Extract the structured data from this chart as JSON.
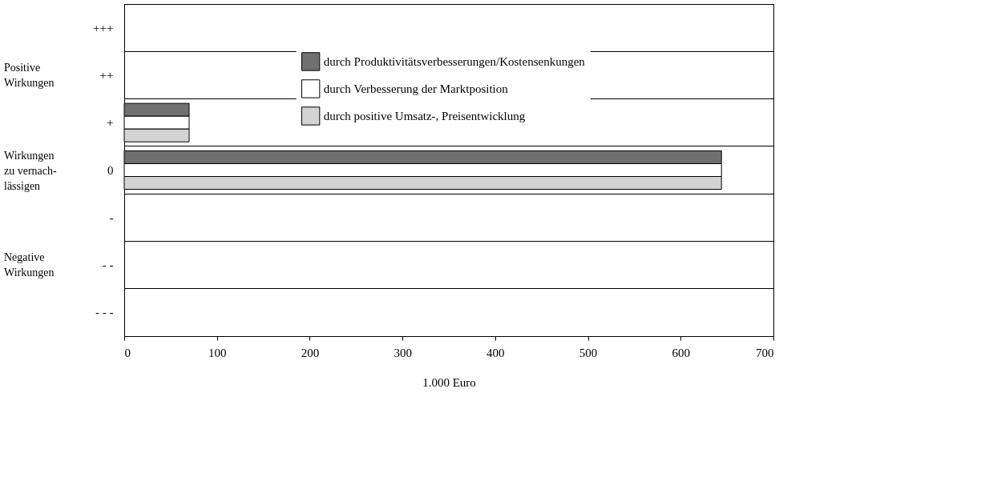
{
  "chart_data": {
    "type": "bar",
    "orientation": "horizontal",
    "xlabel": "1.000 Euro",
    "categories": [
      "+++",
      "++",
      "+",
      "0",
      "-",
      "- -",
      "- - -"
    ],
    "series": [
      {
        "name": "durch Produktivitätsverbesserungen/Kostensenkungen",
        "color": "#707070",
        "values": [
          null,
          null,
          70,
          644,
          null,
          null,
          null
        ]
      },
      {
        "name": "durch Verbesserung der Marktposition",
        "color": "#ffffff",
        "values": [
          null,
          null,
          70,
          644,
          null,
          null,
          null
        ]
      },
      {
        "name": "durch positive Umsatz-, Preisentwicklung",
        "color": "#d3d3d3",
        "values": [
          null,
          null,
          70,
          644,
          null,
          null,
          null
        ]
      }
    ],
    "xlim": [
      0,
      700
    ],
    "xticks": [
      0,
      100,
      200,
      300,
      400,
      500,
      600,
      700
    ],
    "grid": "y",
    "legend": "top",
    "annotations": [
      "Positive\nWirkungen",
      "Wirkungen\nzu vernach-\nlässigen",
      "Negative\nWirkungen"
    ]
  }
}
